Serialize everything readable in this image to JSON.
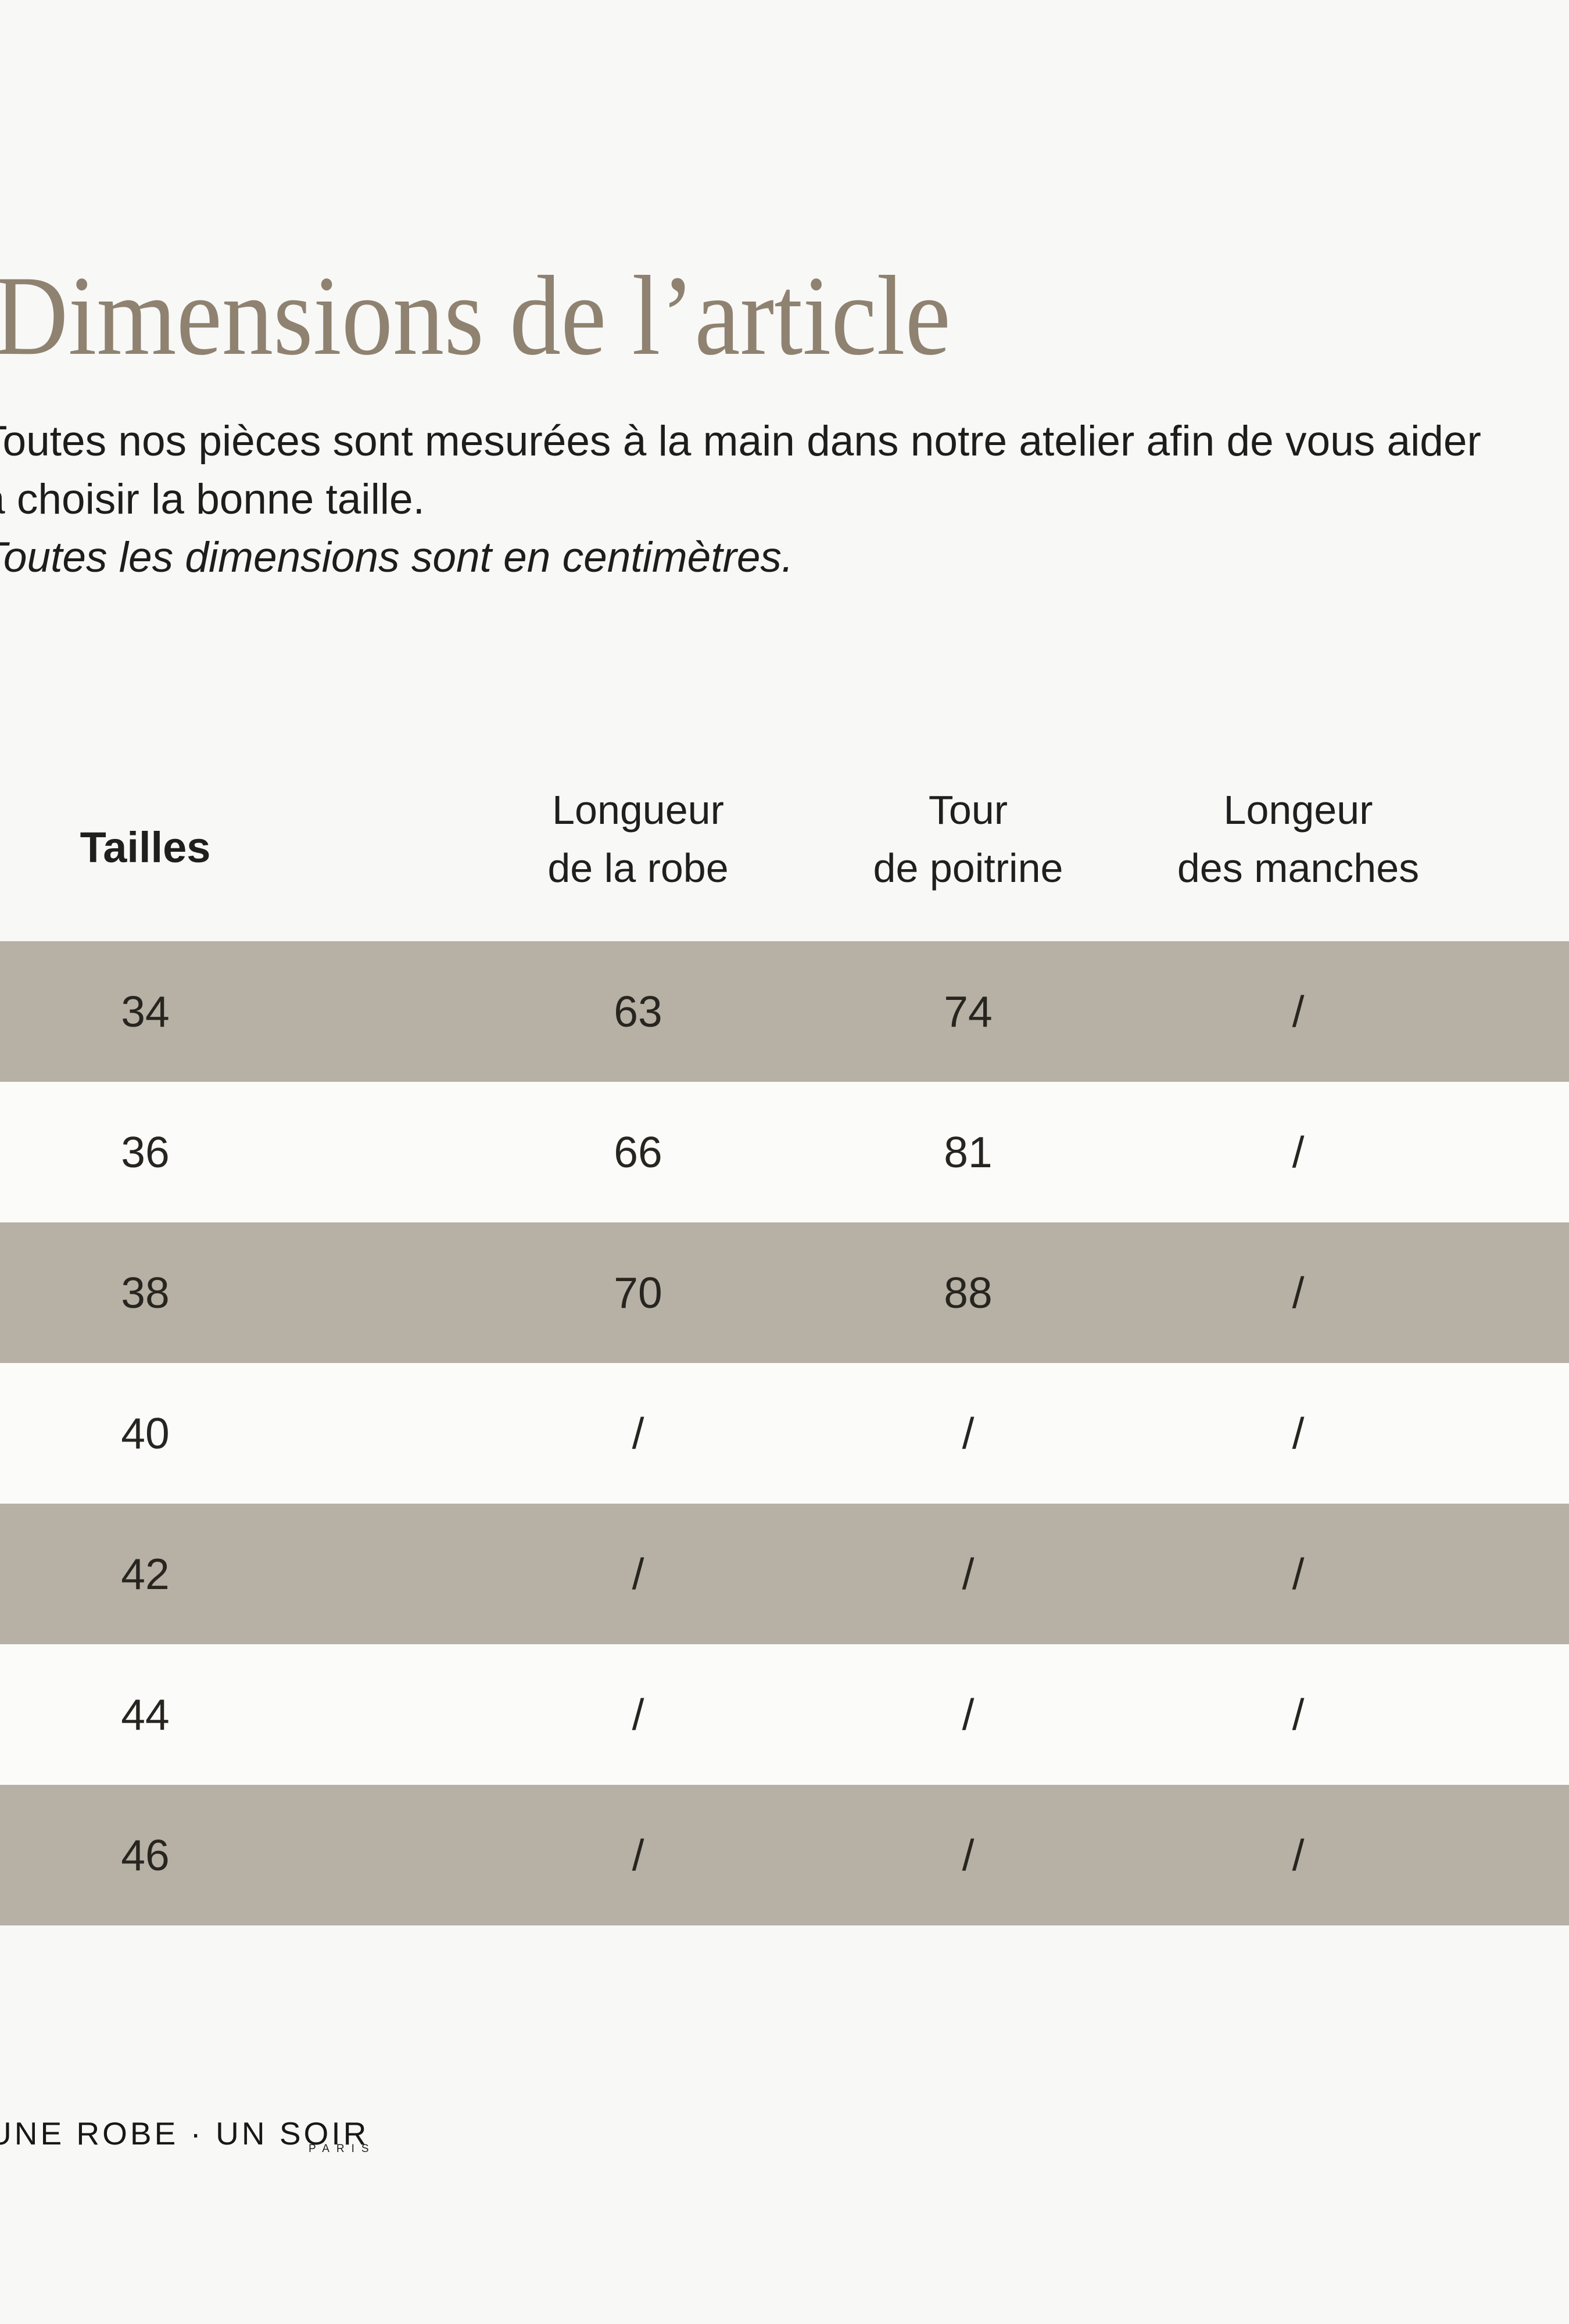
{
  "page": {
    "title": "Dimensions de l’article",
    "intro_line1": "Toutes nos pièces sont mesurées à la main dans notre atelier afin de vous aider",
    "intro_line2": "à choisir la bonne taille.",
    "intro_note": "Toutes les dimensions sont en centimètres."
  },
  "table": {
    "headers": {
      "sizes": "Tailles",
      "dress_length_line1": "Longueur",
      "dress_length_line2": "de la robe",
      "bust_line1": "Tour",
      "bust_line2": "de poitrine",
      "sleeve_length_line1": "Longeur",
      "sleeve_length_line2": "des manches"
    },
    "rows": [
      {
        "size": "34",
        "dress_length": "63",
        "bust": "74",
        "sleeve_length": "/"
      },
      {
        "size": "36",
        "dress_length": "66",
        "bust": "81",
        "sleeve_length": "/"
      },
      {
        "size": "38",
        "dress_length": "70",
        "bust": "88",
        "sleeve_length": "/"
      },
      {
        "size": "40",
        "dress_length": "/",
        "bust": "/",
        "sleeve_length": "/"
      },
      {
        "size": "42",
        "dress_length": "/",
        "bust": "/",
        "sleeve_length": "/"
      },
      {
        "size": "44",
        "dress_length": "/",
        "bust": "/",
        "sleeve_length": "/"
      },
      {
        "size": "46",
        "dress_length": "/",
        "bust": "/",
        "sleeve_length": "/"
      }
    ]
  },
  "footer": {
    "brand": "UNE ROBE · UN SOIR",
    "brand_city": "PARIS"
  },
  "colors": {
    "background": "#f8f8f7",
    "stripe_taupe": "#b7b0a5",
    "stripe_light": "#fbfbfa",
    "title": "#8f8270",
    "text": "#1d1d1d"
  }
}
